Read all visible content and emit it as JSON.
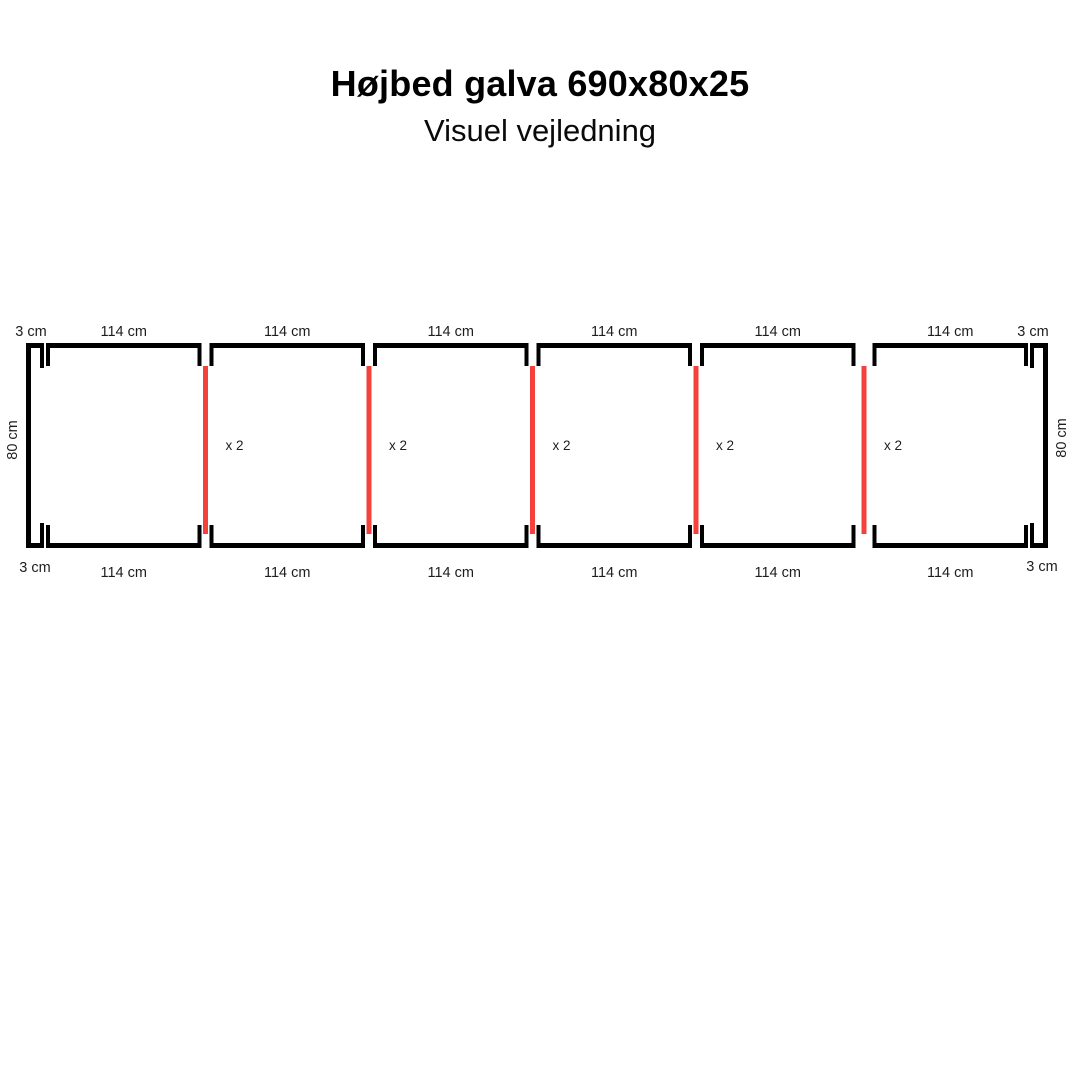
{
  "header": {
    "title": "Højbed galva 690x80x25",
    "subtitle": "Visuel vejledning"
  },
  "colors": {
    "background": "#ffffff",
    "frame": "#000000",
    "connector": "#f5413c",
    "label_text": "#1d1d1b"
  },
  "diagram": {
    "panels": [
      {
        "top_label": "114 cm",
        "bottom_label": "114 cm"
      },
      {
        "top_label": "114 cm",
        "bottom_label": "114 cm"
      },
      {
        "top_label": "114 cm",
        "bottom_label": "114 cm"
      },
      {
        "top_label": "114 cm",
        "bottom_label": "114 cm"
      },
      {
        "top_label": "114 cm",
        "bottom_label": "114 cm"
      },
      {
        "top_label": "114 cm",
        "bottom_label": "114 cm"
      }
    ],
    "connectors": [
      {
        "label": "x 2"
      },
      {
        "label": "x 2"
      },
      {
        "label": "x 2"
      },
      {
        "label": "x 2"
      },
      {
        "label": "x 2"
      }
    ],
    "left_end": {
      "top_label": "3 cm",
      "bottom_label": "3 cm",
      "height_label": "80 cm"
    },
    "right_end": {
      "top_label": "3 cm",
      "bottom_label": "3 cm",
      "height_label": "80 cm"
    }
  }
}
